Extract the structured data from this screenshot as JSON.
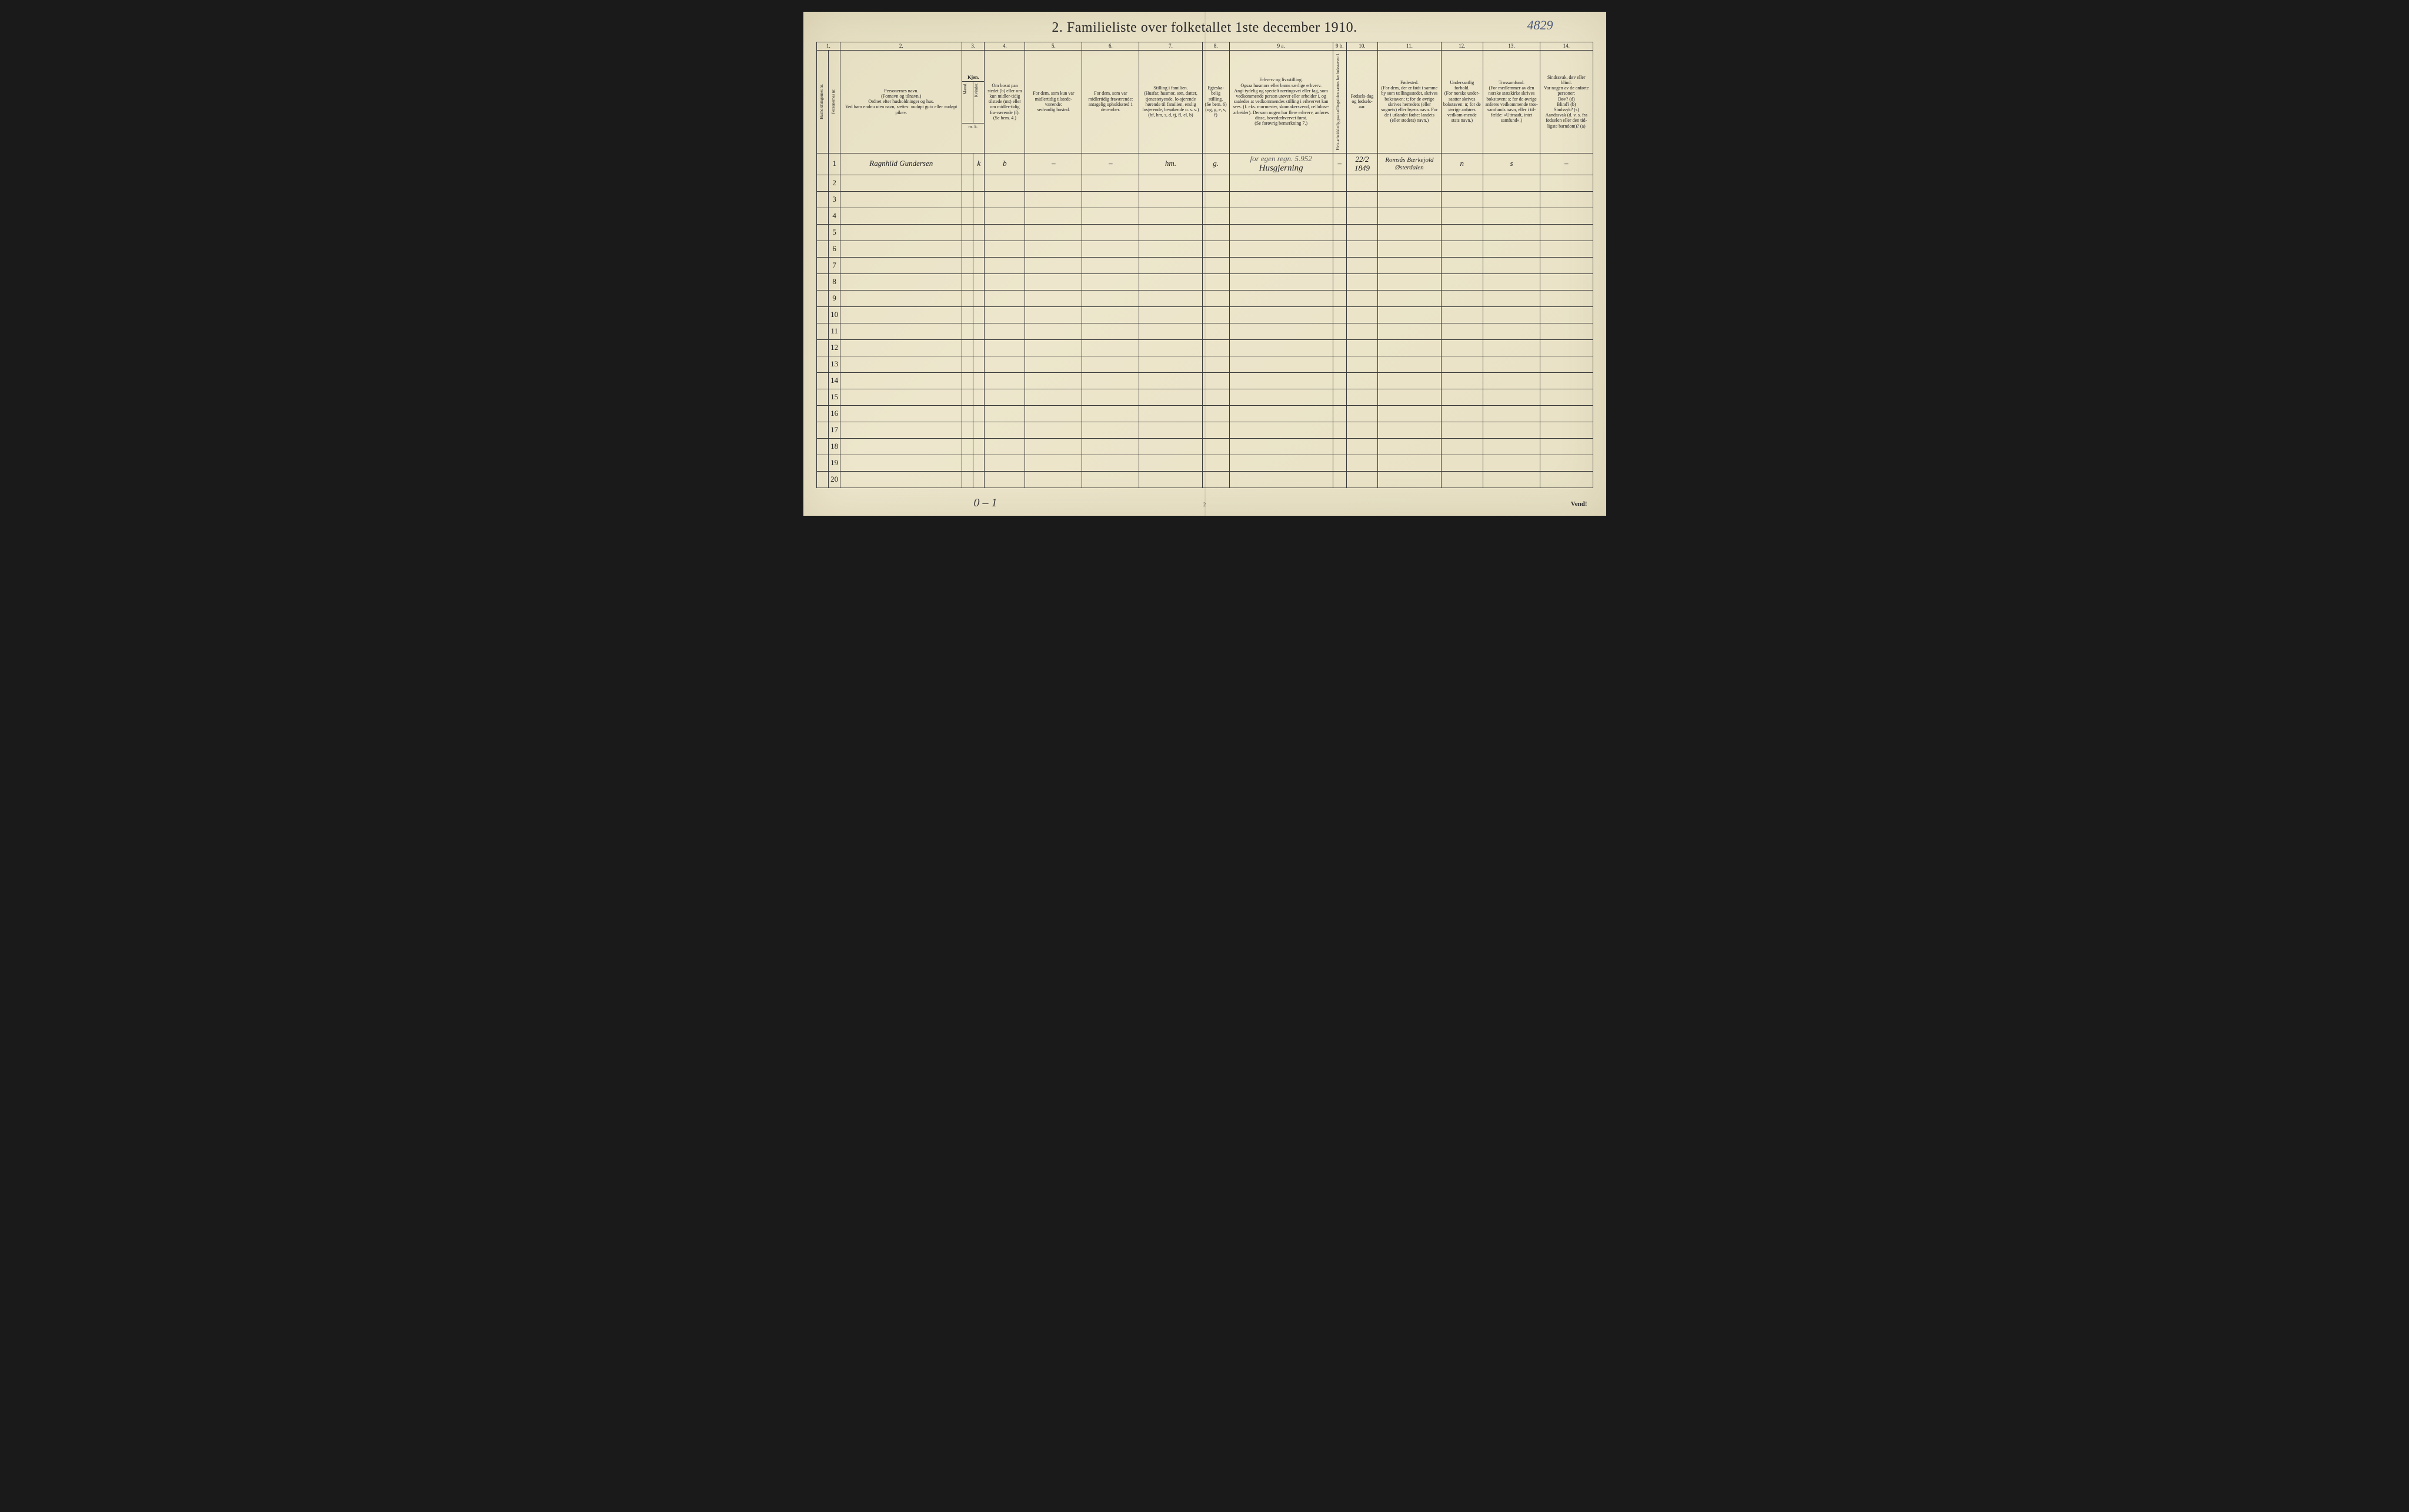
{
  "annotation_number": "4829",
  "title": "2.  Familieliste over folketallet 1ste december 1910.",
  "column_numbers": [
    "1.",
    "",
    "2.",
    "3.",
    "4.",
    "5.",
    "6.",
    "7.",
    "8.",
    "9 a.",
    "9 b.",
    "10.",
    "11.",
    "12.",
    "13.",
    "14."
  ],
  "headers": {
    "h1": "Husholdningernes nr.",
    "h1b": "Personernes nr.",
    "h2": "Personernes navn.\n(Fornavn og tilnavn.)\nOrdnet efter husholdninger og hus.\nVed barn endnu uten navn, sættes: «udøpt gut» eller «udøpt pike».",
    "h3": "Kjøn.",
    "h3a": "Mænd.",
    "h3b": "Kvinder.",
    "h3foot": "m.  k.",
    "h4": "Om bosat paa stedet (b) eller om kun midler-tidig tilstede (mt) eller om midler-tidig fra-værende (f). (Se bem. 4.)",
    "h5": "For dem, som kun var midlertidig tilstede-værende:\nsedvanlig bosted.",
    "h6": "For dem, som var midlertidig fraværende:\nantagelig opholdssted 1 december.",
    "h7": "Stilling i familien.\n(Husfar, husmor, søn, datter, tjenestetyende, lo-sjerende hørende til familien, enslig losjerende, besøkende o. s. v.)\n(hf, hm, s, d, tj, fl, el, b)",
    "h8": "Egteska-belig stilling.\n(Se bem. 6)\n(ug, g, e, s, f)",
    "h9a": "Erhverv og livsstilling.\nOgsaa husmors eller barns særlige erhverv.\nAngi tydelig og specielt næringsvei eller fag, som vedkommende person utøver eller arbeider i, og saaledes at vedkommendes stilling i erhvervet kan sees. (f. eks. murmester, skomakersvend, cellulose-arbeider). Dersom nogen har flere erhverv, anføres disse, hovederhvervet først.\n(Se forøvrig bemerkning 7.)",
    "h9b": "Hvis arbeidsledig paa tællingstiden sættes her bokstaven: l.",
    "h10": "Fødsels-dag og fødsels-aar.",
    "h11": "Fødested.\n(For dem, der er født i samme by som tællingsstedet, skrives bokstaven: t; for de øvrige skrives herredets (eller sognets) eller byens navn. For de i utlandet fødte: landets (eller stedets) navn.)",
    "h12": "Undersaatlig forhold.\n(For norske under-saatter skrives bokstaven: n; for de øvrige anføres vedkom-mende stats navn.)",
    "h13": "Trossamfund.\n(For medlemmer av den norske statskirke skrives bokstaven: s; for de øvrige anføres vedkommende tros-samfunds navn, eller i til-fælde: «Uttraadt, intet samfund».)",
    "h14": "Sindssvak, døv eller blind.\nVar nogen av de anførte personer:\nDøv? (d)\nBlind? (b)\nSindssyk? (s)\nAandssvak (d. v. s. fra fødselen eller den tid-ligste barndom)? (a)"
  },
  "rows": [
    {
      "n": "1",
      "name": "Ragnhild Gundersen",
      "sex": "k",
      "res": "b",
      "away": "–",
      "absent": "–",
      "famrole": "hm.",
      "mar": "g.",
      "occ_note": "for egen regn. 5.952",
      "occ": "Husgjerning",
      "led": "–",
      "dob": "22/2 1849",
      "birthplace": "Romsås Bærkejold Østerdalen",
      "nat": "n",
      "rel": "s",
      "inf": "–"
    },
    {
      "n": "2"
    },
    {
      "n": "3"
    },
    {
      "n": "4"
    },
    {
      "n": "5"
    },
    {
      "n": "6"
    },
    {
      "n": "7"
    },
    {
      "n": "8"
    },
    {
      "n": "9"
    },
    {
      "n": "10"
    },
    {
      "n": "11"
    },
    {
      "n": "12"
    },
    {
      "n": "13"
    },
    {
      "n": "14"
    },
    {
      "n": "15"
    },
    {
      "n": "16"
    },
    {
      "n": "17"
    },
    {
      "n": "18"
    },
    {
      "n": "19"
    },
    {
      "n": "20"
    }
  ],
  "footer_hand": "0 – 1",
  "footer_mid": "2",
  "footer_right": "Vend!",
  "colors": {
    "paper": "#e8e2c8",
    "ink": "#2a2a2a",
    "border": "#3a3a3a",
    "pencil": "#4a5a7a"
  },
  "colwidths_pct": [
    1.6,
    1.6,
    16.2,
    1.5,
    1.5,
    5.4,
    7.6,
    7.6,
    8.4,
    3.6,
    13.8,
    1.8,
    4.2,
    8.4,
    5.6,
    7.6,
    7.0
  ]
}
